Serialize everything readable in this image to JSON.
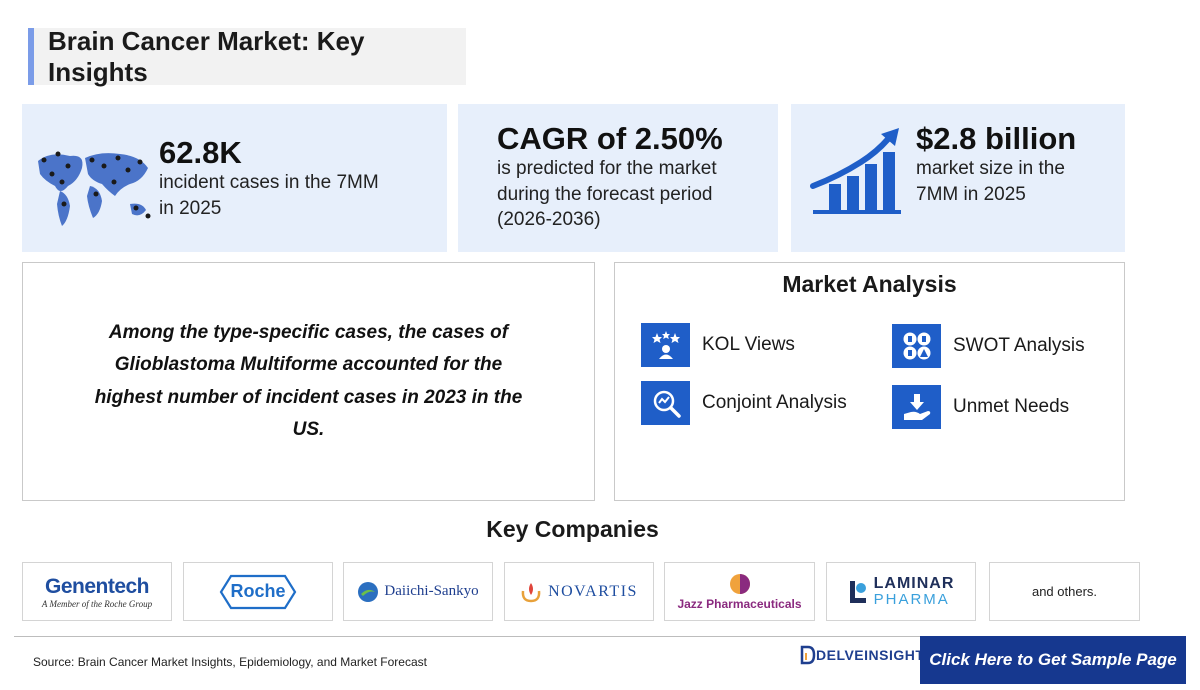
{
  "title": "Brain Cancer Market: Key Insights",
  "stats": [
    {
      "value": "62.8K",
      "lines": [
        "incident cases in the 7MM",
        "in 2025"
      ],
      "icon": "world-map-icon"
    },
    {
      "value": "CAGR of 2.50%",
      "lines": [
        "is predicted for the market",
        "during the forecast period",
        "(2026-2036)"
      ]
    },
    {
      "value": "$2.8 billion",
      "lines": [
        "market size in the",
        "7MM in 2025"
      ],
      "icon": "growth-chart-icon"
    }
  ],
  "highlight": "Among the type-specific cases, the cases of Glioblastoma Multiforme accounted for the highest number of incident cases in 2023 in the US.",
  "analysis": {
    "title": "Market Analysis",
    "items": [
      {
        "label": "KOL Views",
        "icon": "kol-icon"
      },
      {
        "label": "SWOT Analysis",
        "icon": "swot-icon"
      },
      {
        "label": "Conjoint Analysis",
        "icon": "conjoint-icon"
      },
      {
        "label": "Unmet Needs",
        "icon": "unmet-needs-icon"
      }
    ]
  },
  "companies": {
    "title": "Key Companies",
    "logos": [
      {
        "name": "Genentech",
        "tagline": "A Member of the Roche Group"
      },
      {
        "name": "Roche"
      },
      {
        "name": "Daiichi-Sankyo"
      },
      {
        "name": "NOVARTIS"
      },
      {
        "name": "Jazz Pharmaceuticals"
      },
      {
        "name": "LAMINAR",
        "sub": "PHARMA"
      },
      {
        "name": "and others."
      }
    ]
  },
  "footer": {
    "source": "Source: Brain Cancer Market Insights, Epidemiology, and Market Forecast",
    "brand": "DELVEINSIGHT",
    "cta": "Click Here to Get Sample Page"
  },
  "colors": {
    "accent": "#1f5ec8",
    "panel": "#e7effb",
    "cta": "#16388f"
  }
}
